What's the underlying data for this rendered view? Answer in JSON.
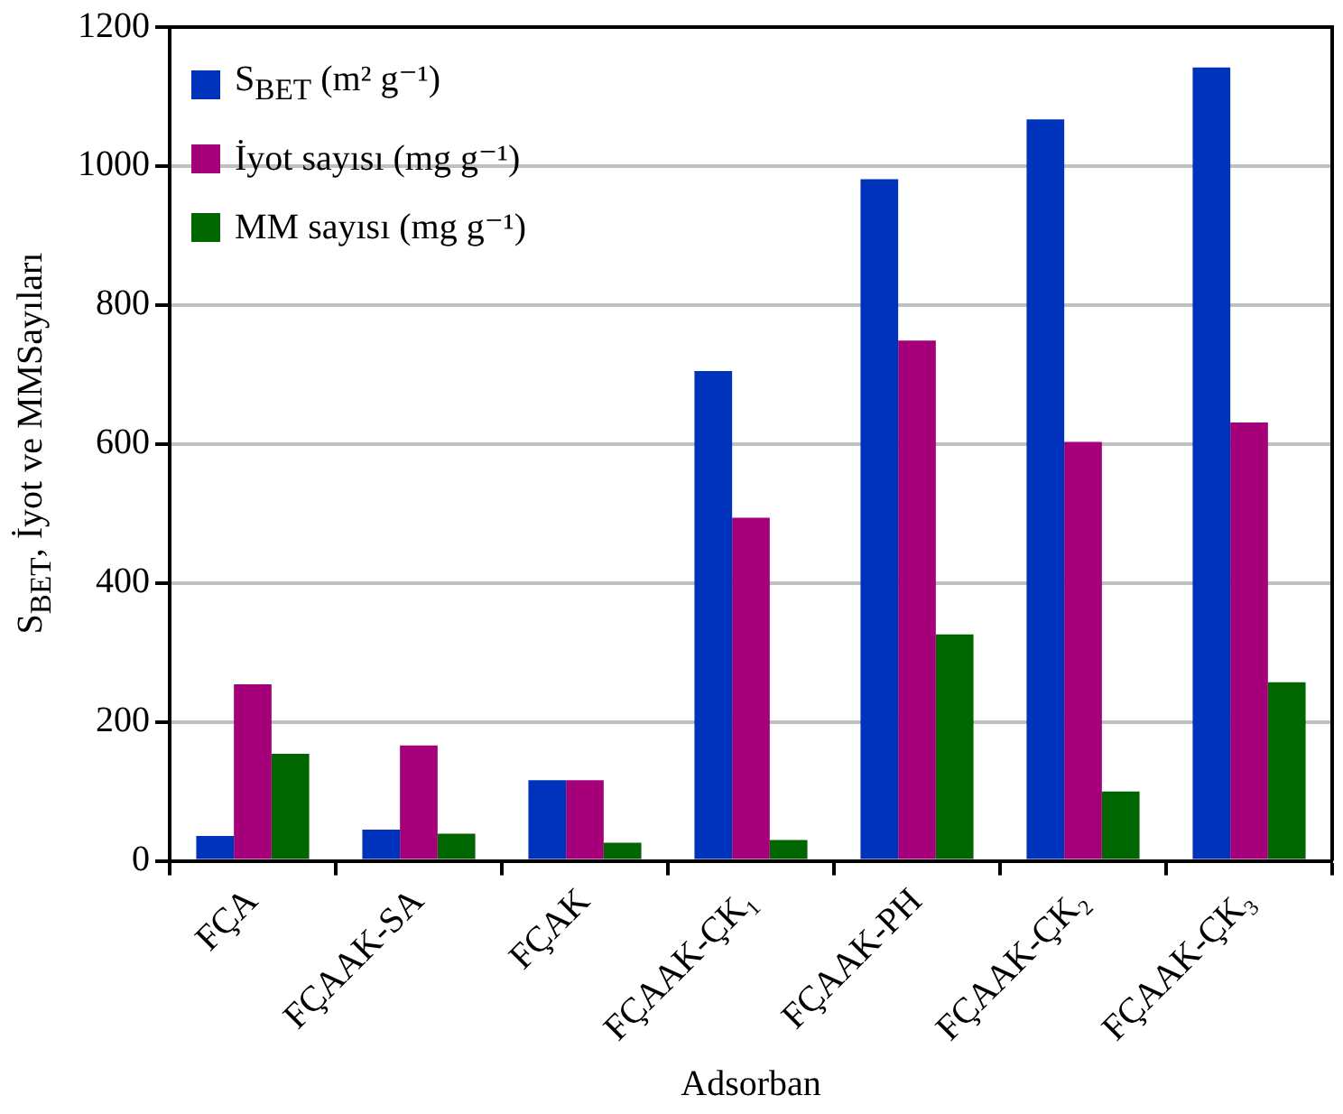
{
  "chart_data": {
    "type": "bar",
    "xlabel": "Adsorban",
    "ylabel": "S$_{BET}$, İyot ve MMSayıları",
    "categories": [
      "FÇA",
      "FÇAAK-SA",
      "FÇAK",
      "FÇAAK-ÇK₁",
      "FÇAAK-PH",
      "FÇAAK-ÇK₂",
      "FÇAAK-ÇK₃"
    ],
    "series": [
      {
        "name": "S$_{BET}$ (m² g⁻¹)",
        "color": "#0033bb",
        "values": [
          36,
          45,
          116,
          705,
          981,
          1067,
          1142
        ]
      },
      {
        "name": "İyot sayısı (mg g⁻¹)",
        "color": "#a5007a",
        "values": [
          254,
          166,
          116,
          494,
          749,
          603,
          631
        ]
      },
      {
        "name": "MM sayısı (mg g⁻¹)",
        "color": "#006600",
        "values": [
          154,
          39,
          26,
          30,
          326,
          100,
          257
        ]
      }
    ],
    "ylim": [
      0,
      1200
    ],
    "yticks": [
      0,
      200,
      400,
      600,
      800,
      1000,
      1200
    ],
    "grid": "y",
    "legend": "top left"
  }
}
